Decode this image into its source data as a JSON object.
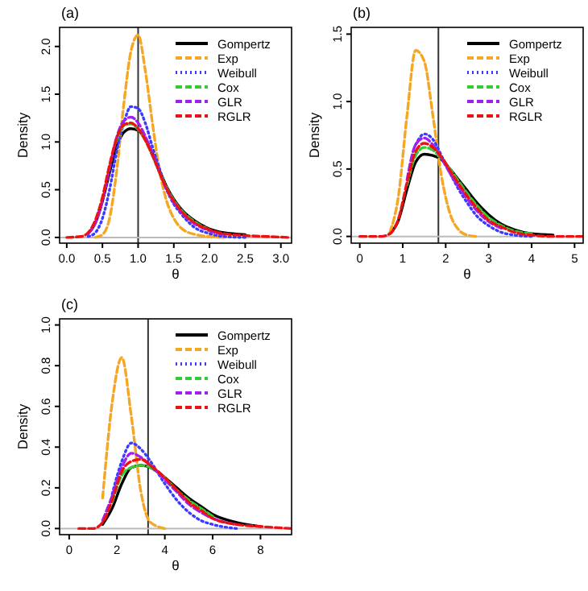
{
  "chart_data": [
    {
      "type": "line",
      "title": "(a)",
      "xlabel": "θ",
      "ylabel": "Density",
      "xlim": [
        -0.1,
        3.15
      ],
      "ylim": [
        -0.06,
        2.2
      ],
      "xticks": [
        {
          "value": 0,
          "label": "0.0"
        },
        {
          "value": 0.5,
          "label": "0.5"
        },
        {
          "value": 1,
          "label": "1.0"
        },
        {
          "value": 1.5,
          "label": "1.5"
        },
        {
          "value": 2,
          "label": "2.0"
        },
        {
          "value": 2.5,
          "label": "2.5"
        },
        {
          "value": 3,
          "label": "3.0"
        }
      ],
      "yticks": [
        {
          "value": 0,
          "label": "0.0"
        },
        {
          "value": 0.5,
          "label": "0.5"
        },
        {
          "value": 1,
          "label": "1.0"
        },
        {
          "value": 1.5,
          "label": "1.5"
        },
        {
          "value": 2,
          "label": "2.0"
        }
      ],
      "legend": "top right",
      "grid": false,
      "marker": "none",
      "ref_lines": [
        {
          "axis": "x",
          "value": 1.0,
          "color": "#333333"
        },
        {
          "axis": "y",
          "value": 0,
          "color": "#bbbbbb"
        }
      ],
      "x": [
        0,
        0.2,
        0.3,
        0.4,
        0.5,
        0.6,
        0.7,
        0.8,
        0.9,
        1.0,
        1.1,
        1.2,
        1.3,
        1.4,
        1.5,
        1.6,
        1.8,
        2.0,
        2.2,
        2.5,
        2.8,
        3.1
      ],
      "series": [
        {
          "name": "Gompertz",
          "color": "#000000",
          "line_style": "solid",
          "values": [
            null,
            null,
            0.04,
            0.15,
            0.38,
            0.68,
            0.95,
            1.1,
            1.14,
            1.12,
            null,
            0.88,
            0.7,
            0.53,
            0.4,
            0.3,
            0.17,
            0.09,
            0.05,
            0.03,
            null,
            null
          ]
        },
        {
          "name": "Exp",
          "color": "#f5a623",
          "line_style": "dashed",
          "values": [
            null,
            null,
            null,
            0,
            0.03,
            0.2,
            0.7,
            1.4,
            1.95,
            2.12,
            1.75,
            1.2,
            0.7,
            0.38,
            0.2,
            0.1,
            0.03,
            0.01,
            0,
            null,
            null,
            null
          ]
        },
        {
          "name": "Weibull",
          "color": "#3b3bff",
          "line_style": "dotted",
          "values": [
            null,
            null,
            0.01,
            0.05,
            0.2,
            0.5,
            0.9,
            1.2,
            1.37,
            1.35,
            1.2,
            0.95,
            0.72,
            0.5,
            0.35,
            0.25,
            0.1,
            0.04,
            0.01,
            0,
            null,
            null
          ]
        },
        {
          "name": "Cox",
          "color": "#33cc33",
          "line_style": "dashed",
          "values": [
            null,
            null,
            null,
            null,
            null,
            null,
            1.02,
            1.17,
            1.19,
            1.13,
            1.02,
            0.86,
            0.68,
            0.52,
            0.39,
            0.29,
            0.16,
            0.08,
            null,
            null,
            null,
            null
          ]
        },
        {
          "name": "GLR",
          "color": "#a020f0",
          "line_style": "dashed",
          "values": [
            null,
            null,
            0.04,
            0.15,
            0.38,
            0.72,
            1.05,
            1.22,
            1.26,
            1.2,
            1.06,
            0.88,
            0.68,
            0.5,
            0.37,
            0.27,
            0.14,
            0.07,
            0.03,
            null,
            null,
            null
          ]
        },
        {
          "name": "RGLR",
          "color": "#ee1111",
          "line_style": "dashed",
          "values": [
            0,
            0.01,
            0.05,
            0.18,
            0.42,
            0.76,
            1.04,
            1.18,
            1.2,
            1.14,
            1.02,
            0.86,
            0.68,
            0.51,
            0.38,
            0.28,
            0.15,
            0.08,
            0.04,
            0.02,
            0.01,
            0
          ]
        }
      ]
    },
    {
      "type": "line",
      "title": "(b)",
      "xlabel": "θ",
      "ylabel": "Density",
      "xlim": [
        -0.2,
        5.2
      ],
      "ylim": [
        -0.05,
        1.55
      ],
      "xticks": [
        0,
        1,
        2,
        3,
        4,
        5
      ],
      "yticks": [
        {
          "value": 0,
          "label": "0.0"
        },
        {
          "value": 0.5,
          "label": "0.5"
        },
        {
          "value": 1,
          "label": "1.0"
        },
        {
          "value": 1.5,
          "label": "1.5"
        }
      ],
      "legend": "top right",
      "grid": false,
      "marker": "none",
      "ref_lines": [
        {
          "axis": "x",
          "value": 1.83,
          "color": "#333333"
        },
        {
          "axis": "y",
          "value": 0,
          "color": "#bbbbbb"
        }
      ],
      "x": [
        0,
        0.5,
        0.7,
        0.9,
        1.1,
        1.3,
        1.5,
        1.7,
        1.9,
        2.1,
        2.3,
        2.5,
        2.7,
        3.0,
        3.3,
        3.6,
        4.0,
        4.5,
        5.2
      ],
      "series": [
        {
          "name": "Gompertz",
          "color": "#000000",
          "line_style": "solid",
          "values": [
            null,
            null,
            0.02,
            0.12,
            0.35,
            0.55,
            0.61,
            0.6,
            0.57,
            0.5,
            0.42,
            0.34,
            0.26,
            0.16,
            0.09,
            0.05,
            0.02,
            0.01,
            null
          ]
        },
        {
          "name": "Exp",
          "color": "#f5a623",
          "line_style": "dashed",
          "values": [
            null,
            null,
            0.03,
            0.3,
            0.9,
            1.38,
            1.3,
            0.9,
            0.45,
            0.17,
            0.05,
            0.01,
            0,
            null,
            null,
            null,
            null,
            null,
            null
          ]
        },
        {
          "name": "Weibull",
          "color": "#3b3bff",
          "line_style": "dotted",
          "values": [
            null,
            null,
            null,
            null,
            null,
            0.68,
            0.76,
            0.72,
            0.6,
            0.47,
            0.35,
            0.25,
            0.16,
            0.08,
            0.03,
            0.01,
            0,
            null,
            null
          ]
        },
        {
          "name": "Cox",
          "color": "#33cc33",
          "line_style": "dashed",
          "values": [
            null,
            null,
            null,
            null,
            0.38,
            0.6,
            0.66,
            0.64,
            0.58,
            0.5,
            0.41,
            0.32,
            0.24,
            0.14,
            0.08,
            0.04,
            0.02,
            null,
            null
          ]
        },
        {
          "name": "GLR",
          "color": "#a020f0",
          "line_style": "dashed",
          "values": [
            null,
            null,
            null,
            null,
            0.42,
            0.68,
            0.73,
            0.68,
            0.58,
            0.47,
            0.37,
            0.28,
            0.2,
            0.11,
            0.06,
            null,
            null,
            null,
            null
          ]
        },
        {
          "name": "RGLR",
          "color": "#ee1111",
          "line_style": "dashed",
          "values": [
            0,
            0,
            0.02,
            0.13,
            0.4,
            0.63,
            0.69,
            0.66,
            0.59,
            0.49,
            0.39,
            0.3,
            0.22,
            0.12,
            0.07,
            0.03,
            0.01,
            0,
            0
          ]
        }
      ]
    },
    {
      "type": "line",
      "title": "(c)",
      "xlabel": "θ",
      "ylabel": "Density",
      "xlim": [
        -0.4,
        9.3
      ],
      "ylim": [
        -0.03,
        1.03
      ],
      "xticks": [
        0,
        2,
        4,
        6,
        8
      ],
      "yticks": [
        {
          "value": 0,
          "label": "0.0"
        },
        {
          "value": 0.2,
          "label": "0.2"
        },
        {
          "value": 0.4,
          "label": "0.4"
        },
        {
          "value": 0.6,
          "label": "0.6"
        },
        {
          "value": 0.8,
          "label": "0.8"
        },
        {
          "value": 1,
          "label": "1.0"
        }
      ],
      "legend": "top right",
      "grid": false,
      "marker": "none",
      "ref_lines": [
        {
          "axis": "x",
          "value": 3.3,
          "color": "#333333"
        },
        {
          "axis": "y",
          "value": 0,
          "color": "#bbbbbb"
        }
      ],
      "x": [
        0.4,
        1,
        1.4,
        1.8,
        2.2,
        2.6,
        3,
        3.4,
        4,
        4.5,
        5,
        5.5,
        6,
        7,
        8,
        9.3
      ],
      "series": [
        {
          "name": "Gompertz",
          "color": "#000000",
          "line_style": "solid",
          "values": [
            null,
            null,
            0.02,
            0.1,
            0.22,
            0.3,
            0.31,
            0.3,
            0.25,
            0.2,
            0.15,
            0.11,
            0.07,
            0.03,
            0.01,
            null
          ]
        },
        {
          "name": "Exp",
          "color": "#f5a623",
          "line_style": "dashed",
          "values": [
            null,
            null,
            0.15,
            0.62,
            0.84,
            0.55,
            0.18,
            0.03,
            0,
            null,
            null,
            null,
            null,
            null,
            null,
            null
          ]
        },
        {
          "name": "Weibull",
          "color": "#3b3bff",
          "line_style": "dotted",
          "values": [
            null,
            null,
            null,
            0.17,
            0.33,
            0.42,
            0.39,
            0.33,
            0.22,
            0.14,
            0.08,
            0.04,
            0.02,
            0,
            null,
            null
          ]
        },
        {
          "name": "Cox",
          "color": "#33cc33",
          "line_style": "dashed",
          "values": [
            null,
            null,
            null,
            0.13,
            0.26,
            0.3,
            0.31,
            0.3,
            0.25,
            0.19,
            0.14,
            0.1,
            0.06,
            null,
            null,
            null
          ]
        },
        {
          "name": "GLR",
          "color": "#a020f0",
          "line_style": "dashed",
          "values": [
            null,
            null,
            0.04,
            0.16,
            0.3,
            0.37,
            0.35,
            0.31,
            0.24,
            0.18,
            0.12,
            0.08,
            0.05,
            0.02,
            null,
            null
          ]
        },
        {
          "name": "RGLR",
          "color": "#ee1111",
          "line_style": "dashed",
          "values": [
            0,
            0,
            0.03,
            0.14,
            0.28,
            0.33,
            0.34,
            0.31,
            0.25,
            0.19,
            0.13,
            0.09,
            0.05,
            0.02,
            0.01,
            0
          ]
        }
      ]
    }
  ]
}
